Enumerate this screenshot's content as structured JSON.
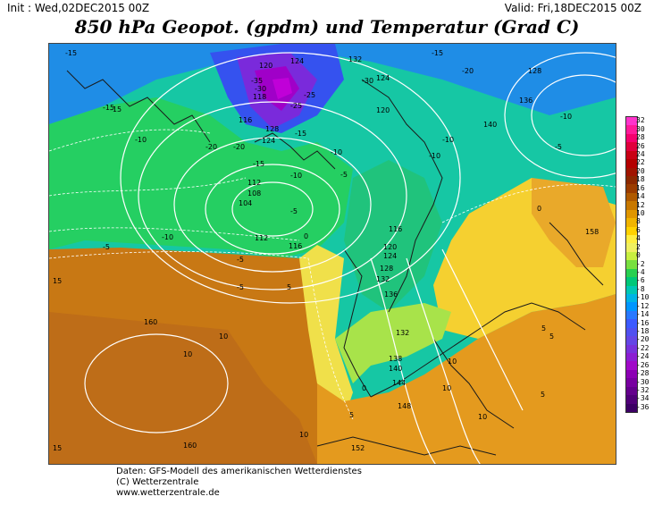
{
  "header": {
    "init": "Init : Wed,02DEC2015 00Z",
    "valid": "Valid: Fri,18DEC2015 00Z",
    "title": "850 hPa Geopot. (gpdm) und Temperatur (Grad C)"
  },
  "legend": {
    "labels": [
      "32",
      "30",
      "28",
      "26",
      "24",
      "22",
      "20",
      "18",
      "16",
      "14",
      "12",
      "10",
      "8",
      "6",
      "4",
      "2",
      "0",
      "-2",
      "-4",
      "-6",
      "-8",
      "-10",
      "-12",
      "-14",
      "-16",
      "-18",
      "-20",
      "-22",
      "-24",
      "-26",
      "-28",
      "-30",
      "-32",
      "-34",
      "-36"
    ],
    "colors": [
      "#ff33cc",
      "#ff1a99",
      "#f5006e",
      "#e0003c",
      "#c80014",
      "#b40000",
      "#a01400",
      "#8c2800",
      "#9b3c00",
      "#b05a00",
      "#c87800",
      "#e09600",
      "#f0b400",
      "#ffd200",
      "#ffee40",
      "#f0f060",
      "#c8f040",
      "#78e040",
      "#28d050",
      "#00c878",
      "#00c8b4",
      "#00b4e6",
      "#0096ff",
      "#2878ff",
      "#3c5aff",
      "#5050f0",
      "#6446e6",
      "#7832dc",
      "#8c1ed2",
      "#a00ac8",
      "#8c00b4",
      "#7800a0",
      "#64008c",
      "#500078",
      "#3c0064"
    ]
  },
  "map_labels": {
    "geopotential": [
      "120",
      "124",
      "132",
      "128",
      "136",
      "140",
      "118",
      "116",
      "128",
      "124",
      "112",
      "108",
      "104",
      "124",
      "120",
      "112",
      "116",
      "120",
      "124",
      "128",
      "132",
      "136",
      "132",
      "138",
      "140",
      "144",
      "148",
      "152",
      "158",
      "160",
      "160",
      "116"
    ],
    "temperature": [
      "-15",
      "-15",
      "-20",
      "-20",
      "-15",
      "-30",
      "-35",
      "-25",
      "-25",
      "-30",
      "-15",
      "-10",
      "-10",
      "-10",
      "-5",
      "-5",
      "-5",
      "-10",
      "-10",
      "-5",
      "-15",
      "-20",
      "-10",
      "-15",
      "-10",
      "-5",
      "0",
      "0",
      "5",
      "5",
      "10",
      "10",
      "5",
      "0",
      "5",
      "10",
      "15",
      "10",
      "-5",
      "5",
      "10",
      "15",
      "10"
    ]
  },
  "footer": {
    "line1": "Daten: GFS-Modell des amerikanischen Wetterdienstes",
    "line2": "(C) Wetterzentrale",
    "line3": "www.wetterzentrale.de"
  }
}
